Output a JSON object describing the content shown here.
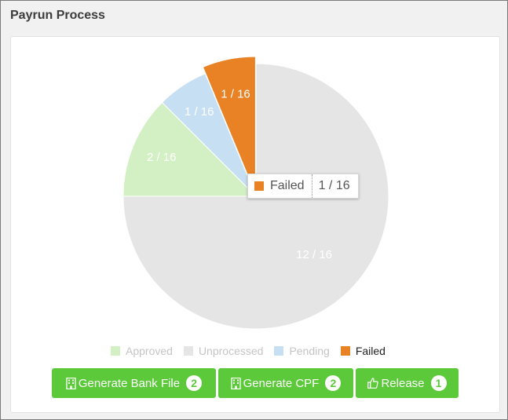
{
  "panel": {
    "title": "Payrun Process"
  },
  "chart_data": {
    "type": "pie",
    "slices": [
      {
        "name": "Unprocessed",
        "value": 12,
        "label": "12 / 16",
        "color": "#e5e5e5"
      },
      {
        "name": "Approved",
        "value": 2,
        "label": "2 / 16",
        "color": "#d3efc4"
      },
      {
        "name": "Pending",
        "value": 1,
        "label": "1 / 16",
        "color": "#c6dff3"
      },
      {
        "name": "Failed",
        "value": 1,
        "label": "1 / 16",
        "color": "#e88225"
      }
    ],
    "total": 16,
    "highlighted": "Failed"
  },
  "tooltip": {
    "name": "Failed",
    "value": "1 / 16",
    "color": "#e88225"
  },
  "legend": [
    {
      "name": "Approved",
      "color": "#d3efc4",
      "active": false
    },
    {
      "name": "Unprocessed",
      "color": "#e5e5e5",
      "active": false
    },
    {
      "name": "Pending",
      "color": "#c6dff3",
      "active": false
    },
    {
      "name": "Failed",
      "color": "#e88225",
      "active": true
    }
  ],
  "buttons": {
    "bank_file": {
      "label": "Generate Bank File",
      "count": "2",
      "icon": "building-icon"
    },
    "cpf": {
      "label": "Generate CPF",
      "count": "2",
      "icon": "building-icon"
    },
    "release": {
      "label": "Release",
      "count": "1",
      "icon": "thumbs-up-icon"
    }
  },
  "colors": {
    "button_green": "#5cc93a"
  }
}
